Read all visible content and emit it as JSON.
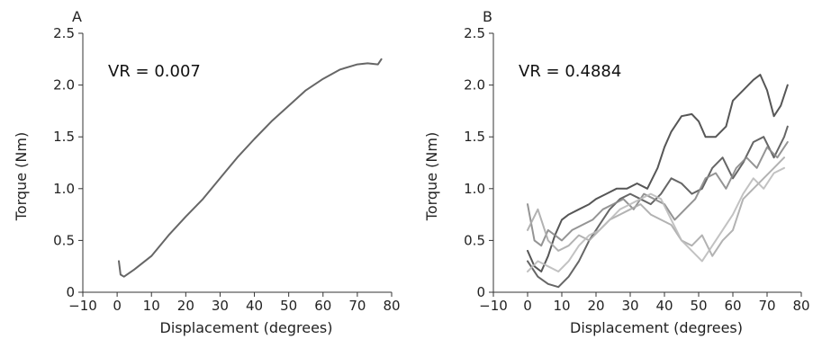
{
  "chart_data": [
    {
      "panel": "A",
      "type": "line",
      "annotation": "VR = 0.007",
      "xlabel": "Displacement (degrees)",
      "ylabel": "Torque (Nm)",
      "xlim": [
        -10,
        80
      ],
      "ylim": [
        0,
        2.5
      ],
      "x_ticks": [
        "−10",
        "0",
        "10",
        "20",
        "30",
        "40",
        "50",
        "60",
        "70",
        "80"
      ],
      "y_ticks": [
        "0",
        "0.5",
        "1.0",
        "1.5",
        "2.0",
        "2.5"
      ],
      "grid": false,
      "series": [
        {
          "color": "#555555",
          "x": [
            0.5,
            1,
            2,
            5,
            10,
            15,
            20,
            25,
            30,
            35,
            40,
            45,
            50,
            55,
            60,
            65,
            70,
            73,
            76,
            77
          ],
          "y": [
            0.3,
            0.17,
            0.15,
            0.22,
            0.35,
            0.55,
            0.73,
            0.9,
            1.1,
            1.3,
            1.48,
            1.65,
            1.8,
            1.95,
            2.06,
            2.15,
            2.2,
            2.21,
            2.2,
            2.25
          ]
        }
      ]
    },
    {
      "panel": "B",
      "type": "line",
      "annotation": "VR = 0.4884",
      "xlabel": "Displacement (degrees)",
      "ylabel": "Torque (Nm)",
      "xlim": [
        -10,
        80
      ],
      "ylim": [
        0,
        2.5
      ],
      "x_ticks": [
        "−10",
        "0",
        "10",
        "20",
        "30",
        "40",
        "50",
        "60",
        "70",
        "80"
      ],
      "y_ticks": [
        "0",
        "0.5",
        "1.0",
        "1.5",
        "2.0",
        "2.5"
      ],
      "grid": false,
      "series": [
        {
          "color": "#444444",
          "x": [
            0,
            2,
            4,
            6,
            8,
            10,
            12,
            15,
            18,
            20,
            23,
            26,
            29,
            32,
            35,
            38,
            40,
            42,
            45,
            48,
            50,
            52,
            55,
            58,
            60,
            63,
            66,
            68,
            70,
            72,
            74,
            76
          ],
          "y": [
            0.4,
            0.25,
            0.2,
            0.35,
            0.55,
            0.7,
            0.75,
            0.8,
            0.85,
            0.9,
            0.95,
            1.0,
            1.0,
            1.05,
            1.0,
            1.2,
            1.4,
            1.55,
            1.7,
            1.72,
            1.65,
            1.5,
            1.5,
            1.6,
            1.85,
            1.95,
            2.05,
            2.1,
            1.95,
            1.7,
            1.8,
            2.0
          ]
        },
        {
          "color": "#555555",
          "x": [
            0,
            3,
            6,
            9,
            12,
            15,
            18,
            21,
            24,
            27,
            30,
            33,
            36,
            39,
            42,
            45,
            48,
            51,
            54,
            57,
            60,
            63,
            66,
            69,
            72,
            75,
            76
          ],
          "y": [
            0.3,
            0.15,
            0.08,
            0.05,
            0.15,
            0.3,
            0.5,
            0.65,
            0.8,
            0.9,
            0.95,
            0.9,
            0.85,
            0.95,
            1.1,
            1.05,
            0.95,
            1.0,
            1.2,
            1.3,
            1.1,
            1.25,
            1.45,
            1.5,
            1.3,
            1.5,
            1.6
          ]
        },
        {
          "color": "#888888",
          "x": [
            0,
            2,
            4,
            6,
            8,
            10,
            13,
            16,
            19,
            22,
            25,
            28,
            31,
            34,
            37,
            40,
            43,
            46,
            49,
            52,
            55,
            58,
            61,
            64,
            67,
            70,
            73,
            76
          ],
          "y": [
            0.85,
            0.5,
            0.45,
            0.6,
            0.55,
            0.5,
            0.6,
            0.65,
            0.7,
            0.8,
            0.85,
            0.9,
            0.8,
            0.95,
            0.9,
            0.85,
            0.7,
            0.8,
            0.9,
            1.1,
            1.15,
            1.0,
            1.2,
            1.3,
            1.2,
            1.4,
            1.3,
            1.45
          ]
        },
        {
          "color": "#aaaaaa",
          "x": [
            0,
            3,
            6,
            9,
            12,
            15,
            18,
            21,
            24,
            27,
            30,
            33,
            36,
            39,
            42,
            45,
            48,
            51,
            54,
            57,
            60,
            63,
            66,
            69,
            72,
            75
          ],
          "y": [
            0.6,
            0.8,
            0.5,
            0.4,
            0.45,
            0.55,
            0.5,
            0.6,
            0.7,
            0.75,
            0.8,
            0.85,
            0.75,
            0.7,
            0.65,
            0.5,
            0.45,
            0.55,
            0.35,
            0.5,
            0.6,
            0.9,
            1.0,
            1.1,
            1.2,
            1.3
          ]
        },
        {
          "color": "#bbbbbb",
          "x": [
            0,
            3,
            6,
            9,
            12,
            15,
            18,
            21,
            24,
            27,
            30,
            33,
            36,
            39,
            42,
            45,
            48,
            51,
            54,
            57,
            60,
            63,
            66,
            69,
            72,
            75
          ],
          "y": [
            0.2,
            0.3,
            0.25,
            0.2,
            0.3,
            0.45,
            0.55,
            0.6,
            0.7,
            0.8,
            0.85,
            0.9,
            0.95,
            0.9,
            0.7,
            0.5,
            0.4,
            0.3,
            0.45,
            0.6,
            0.75,
            0.95,
            1.1,
            1.0,
            1.15,
            1.2
          ]
        }
      ]
    }
  ]
}
